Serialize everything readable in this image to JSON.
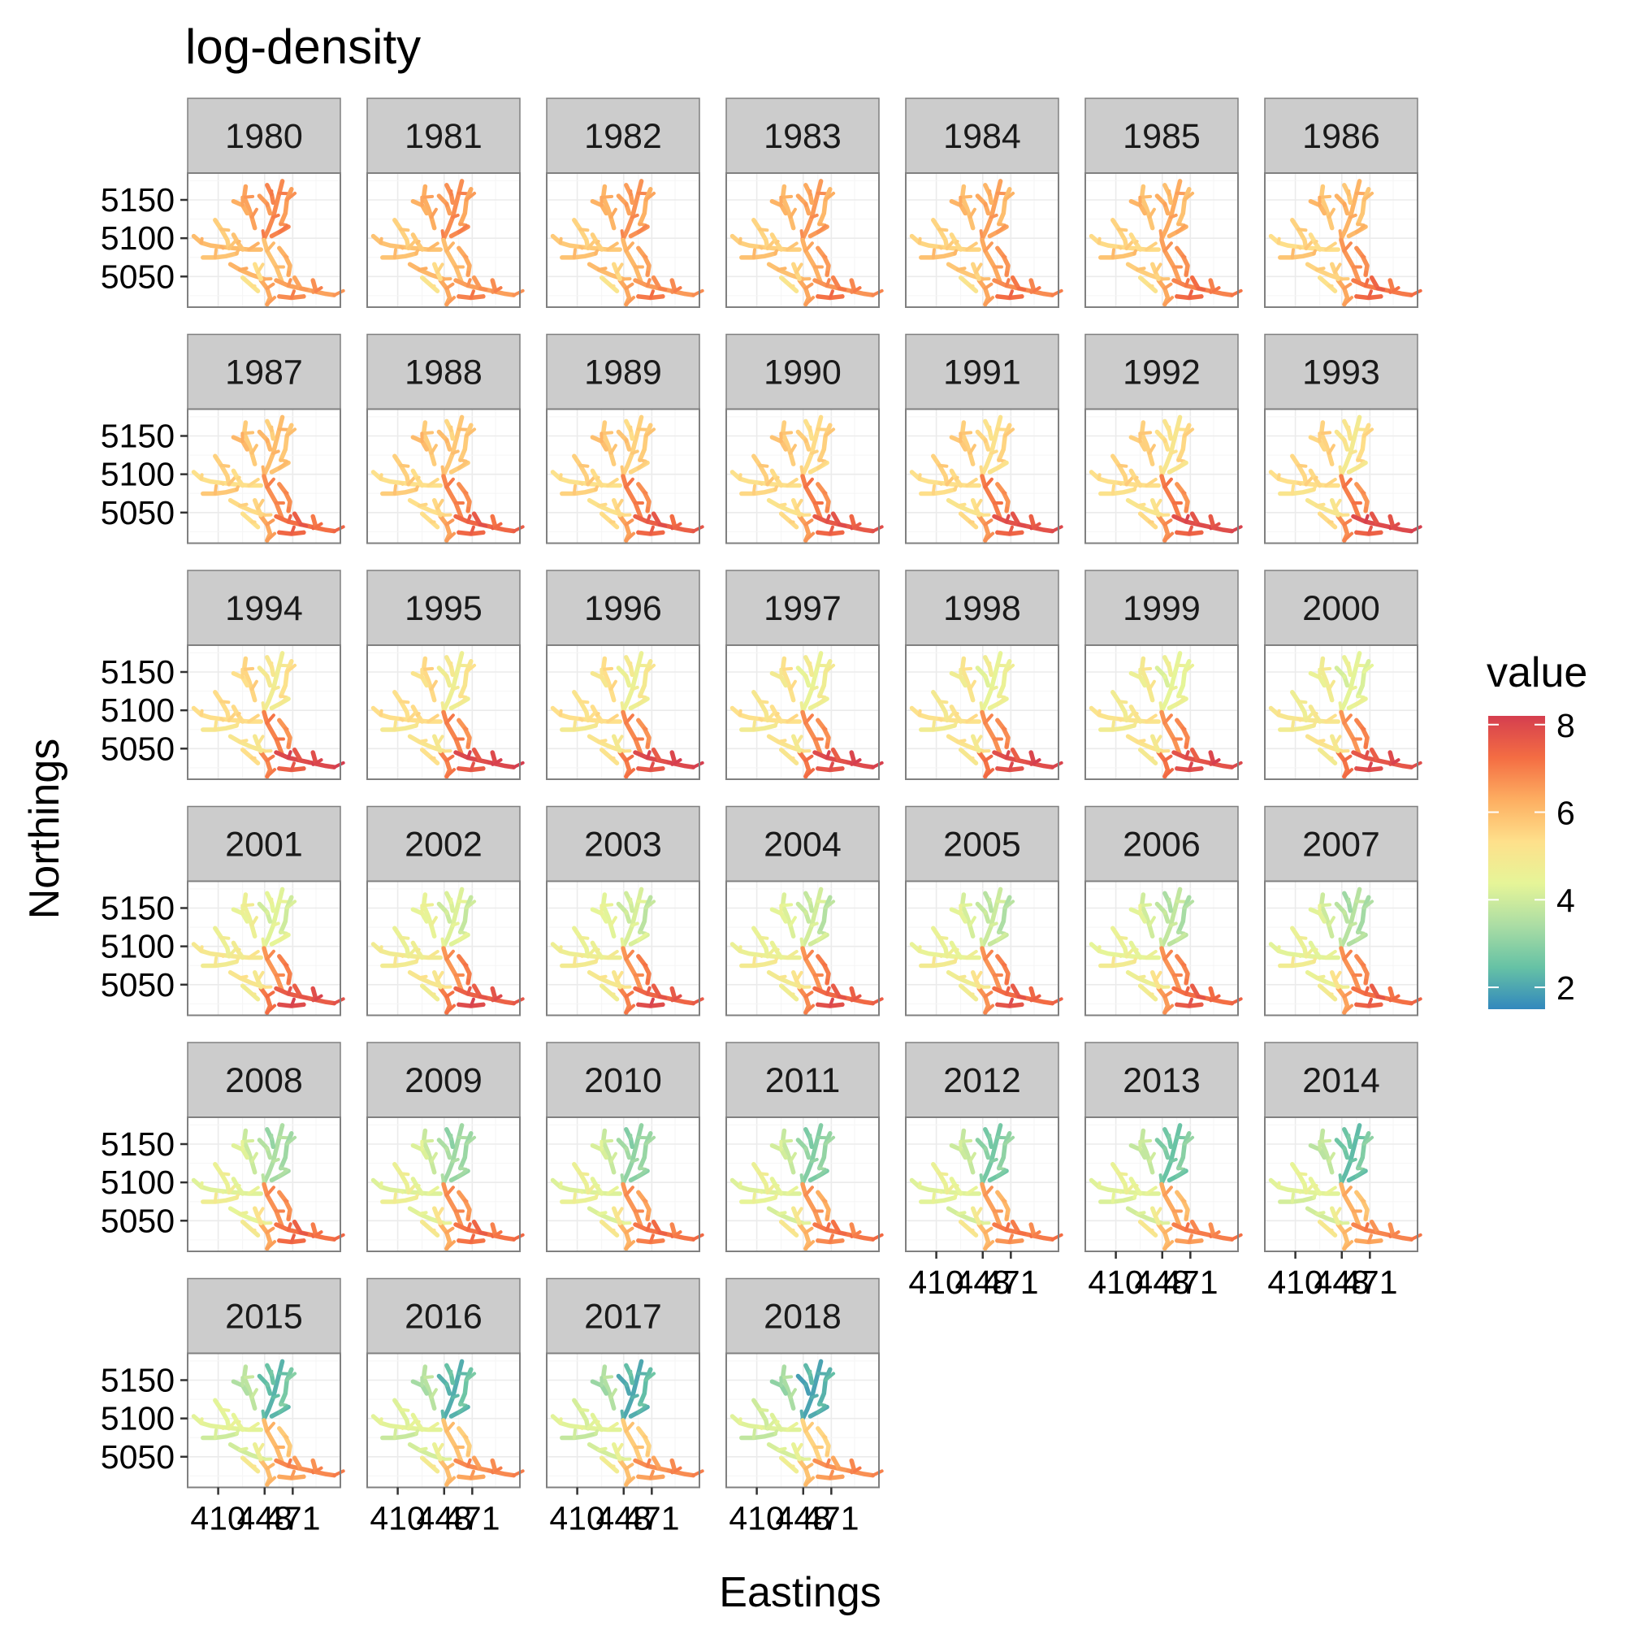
{
  "chart_data": {
    "type": "faceted-map",
    "title": "log-density",
    "xlabel": "Eastings",
    "ylabel": "Northings",
    "facets": [
      "1980",
      "1981",
      "1982",
      "1983",
      "1984",
      "1985",
      "1986",
      "1987",
      "1988",
      "1989",
      "1990",
      "1991",
      "1992",
      "1993",
      "1994",
      "1995",
      "1996",
      "1997",
      "1998",
      "1999",
      "2000",
      "2001",
      "2002",
      "2003",
      "2004",
      "2005",
      "2006",
      "2007",
      "2008",
      "2009",
      "2010",
      "2011",
      "2012",
      "2013",
      "2014",
      "2015",
      "2016",
      "2017",
      "2018"
    ],
    "ncol": 7,
    "y_ticks": [
      5150,
      5100,
      5050
    ],
    "ylim": [
      5010,
      5185
    ],
    "x_tick_labels": [
      "410",
      "448",
      "471"
    ],
    "x_tick_values": [
      410,
      448,
      471
    ],
    "xlim": [
      385,
      510
    ],
    "legend": {
      "title": "value",
      "ticks": [
        8,
        6,
        4,
        2
      ],
      "range": [
        1.5,
        8.2
      ],
      "colors": [
        "#3288bd",
        "#66c2a5",
        "#abdda4",
        "#e6f598",
        "#fee08b",
        "#fdae61",
        "#f46d43",
        "#d53e4f"
      ],
      "placement": "right"
    }
  }
}
